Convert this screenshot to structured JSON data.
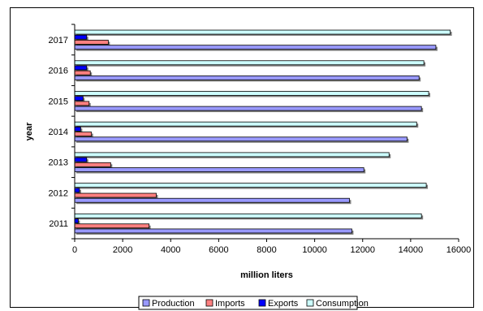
{
  "chart_data": {
    "type": "bar",
    "orientation": "horizontal",
    "title": "",
    "xlabel": "million liters",
    "ylabel": "year",
    "xlim": [
      0,
      16000
    ],
    "xticks": [
      0,
      2000,
      4000,
      6000,
      8000,
      10000,
      12000,
      14000,
      16000
    ],
    "grid": false,
    "legend_position": "bottom",
    "categories": [
      "2011",
      "2012",
      "2013",
      "2014",
      "2015",
      "2016",
      "2017"
    ],
    "series": [
      {
        "name": "Production",
        "color": "#9999ff",
        "values": [
          11550,
          11450,
          12050,
          13850,
          14450,
          14350,
          15050
        ]
      },
      {
        "name": "Imports",
        "color": "#ff8080",
        "values": [
          3100,
          3400,
          1500,
          700,
          600,
          650,
          1400
        ]
      },
      {
        "name": "Exports",
        "color": "#0000ff",
        "values": [
          150,
          200,
          500,
          250,
          350,
          500,
          500
        ]
      },
      {
        "name": "Consumption",
        "color": "#ccffff",
        "values": [
          14450,
          14650,
          13100,
          14250,
          14750,
          14550,
          15650
        ]
      }
    ]
  }
}
